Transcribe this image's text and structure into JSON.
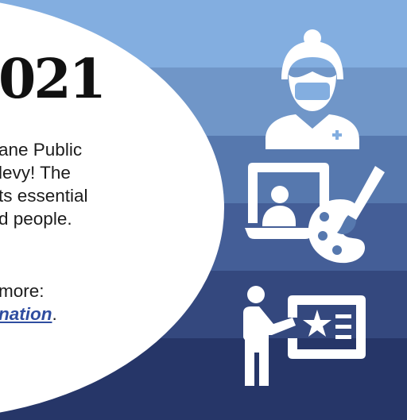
{
  "headline": "021",
  "body_lines": [
    "ane Public",
    "levy! The",
    "ts essential",
    "d people."
  ],
  "more_label": "more:",
  "link_text": "nation",
  "link_suffix": ".",
  "icons": [
    "nurse-icon",
    "art-icon",
    "teach-icon"
  ],
  "colors": {
    "bands": [
      "#83aee0",
      "#7096c8",
      "#5678ae",
      "#445e97",
      "#34487e",
      "#263668"
    ],
    "link": "#2f4da0",
    "icon": "#ffffff"
  }
}
